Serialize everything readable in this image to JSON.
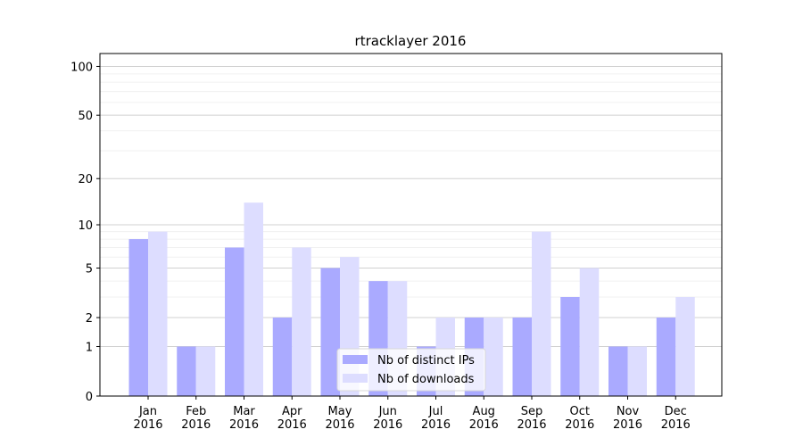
{
  "chart_data": {
    "type": "bar",
    "title": "rtracklayer 2016",
    "xlabel": "",
    "ylabel": "",
    "yscale": "log(1+y)",
    "ylim": [
      0,
      120
    ],
    "yticks": [
      0,
      1,
      2,
      5,
      10,
      20,
      50,
      100
    ],
    "grid": "horizontal",
    "legend_position": "lower-center",
    "categories": [
      "Jan\n2016",
      "Feb\n2016",
      "Mar\n2016",
      "Apr\n2016",
      "May\n2016",
      "Jun\n2016",
      "Jul\n2016",
      "Aug\n2016",
      "Sep\n2016",
      "Oct\n2016",
      "Nov\n2016",
      "Dec\n2016"
    ],
    "series": [
      {
        "name": "Nb of distinct IPs",
        "color": "#aaaaff",
        "values": [
          8,
          1,
          7,
          2,
          5,
          4,
          1,
          2,
          2,
          3,
          1,
          2
        ]
      },
      {
        "name": "Nb of downloads",
        "color": "#ddddff",
        "values": [
          9,
          1,
          14,
          7,
          6,
          4,
          2,
          2,
          9,
          5,
          1,
          3
        ]
      }
    ]
  }
}
